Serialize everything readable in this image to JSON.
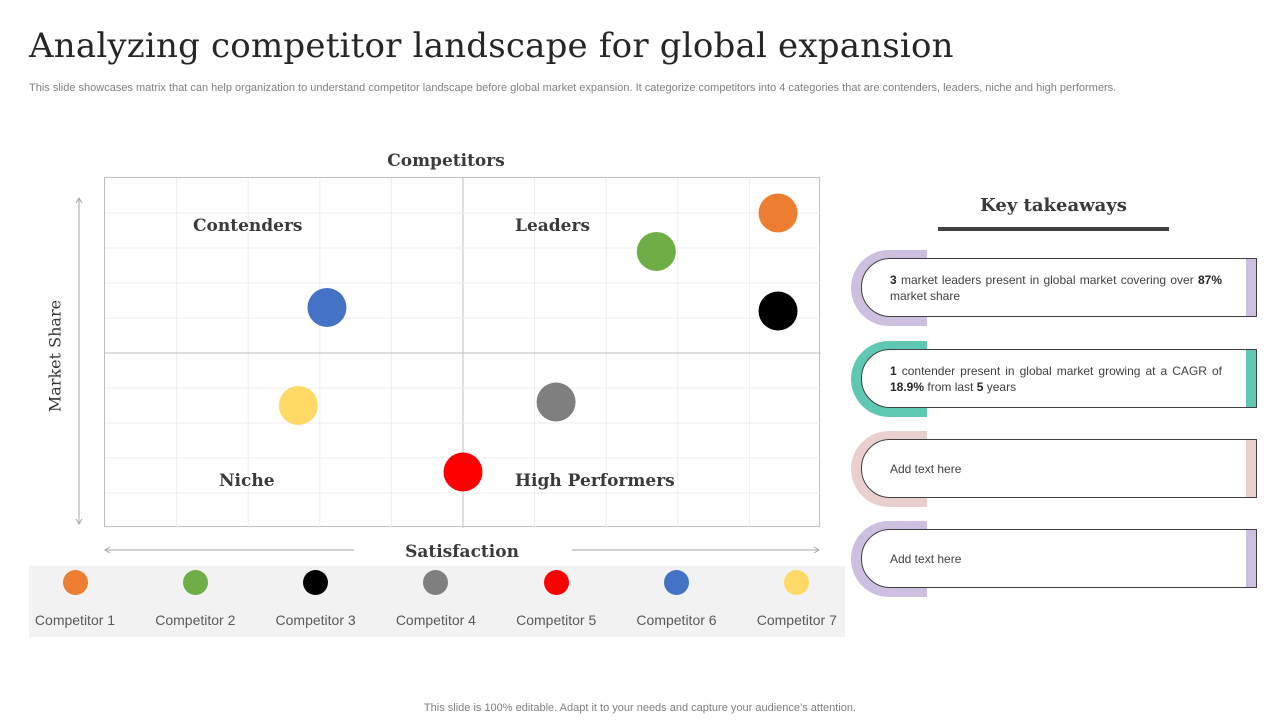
{
  "page": {
    "title": "Analyzing competitor landscape for global expansion",
    "subtitle": "This slide showcases matrix that can help organization to understand competitor landscape before global market expansion. It categorize competitors into 4 categories that are contenders, leaders, niche and high performers.",
    "footer": "This slide is 100% editable. Adapt it to your needs and capture your audience’s attention."
  },
  "matrix": {
    "top_label": "Competitors",
    "x_axis_label": "Satisfaction",
    "y_axis_label": "Market Share",
    "quadrants": {
      "top_left": "Contenders",
      "top_right": "Leaders",
      "bottom_left": "Niche",
      "bottom_right": "High Performers"
    },
    "x_range": [
      0,
      100
    ],
    "y_range": [
      0,
      100
    ],
    "points": [
      {
        "competitor": "Competitor 1",
        "color": "#ED7D31",
        "x": 94,
        "y": 90
      },
      {
        "competitor": "Competitor 2",
        "color": "#70AD47",
        "x": 77,
        "y": 79
      },
      {
        "competitor": "Competitor 3",
        "color": "#000000",
        "x": 94,
        "y": 62
      },
      {
        "competitor": "Competitor 4",
        "color": "#7F7F7F",
        "x": 63,
        "y": 36
      },
      {
        "competitor": "Competitor 5",
        "color": "#FF0000",
        "x": 50,
        "y": 16
      },
      {
        "competitor": "Competitor 6",
        "color": "#4472C4",
        "x": 31,
        "y": 63
      },
      {
        "competitor": "Competitor 7",
        "color": "#FFD966",
        "x": 27,
        "y": 35
      }
    ]
  },
  "legend": [
    {
      "name": "Competitor 1",
      "color": "#ED7D31"
    },
    {
      "name": "Competitor 2",
      "color": "#70AD47"
    },
    {
      "name": "Competitor 3",
      "color": "#000000"
    },
    {
      "name": "Competitor 4",
      "color": "#7F7F7F"
    },
    {
      "name": "Competitor 5",
      "color": "#FF0000"
    },
    {
      "name": "Competitor 6",
      "color": "#4472C4"
    },
    {
      "name": "Competitor 7",
      "color": "#FFD966"
    }
  ],
  "takeaways": {
    "title": "Key takeaways",
    "cards": [
      {
        "accent": "#CDBFE0",
        "parts": [
          {
            "t": "3",
            "b": true
          },
          {
            "t": " market leaders present in global market covering over "
          },
          {
            "t": "87%",
            "b": true
          },
          {
            "t": " market share"
          }
        ]
      },
      {
        "accent": "#5EC8B3",
        "parts": [
          {
            "t": "1",
            "b": true
          },
          {
            "t": " contender present in global market growing at a CAGR of "
          },
          {
            "t": "18.9%",
            "b": true
          },
          {
            "t": " from last "
          },
          {
            "t": "5",
            "b": true
          },
          {
            "t": " years"
          }
        ]
      },
      {
        "accent": "#EACFCF",
        "parts": [
          {
            "t": "Add text here"
          }
        ]
      },
      {
        "accent": "#CDBFE0",
        "parts": [
          {
            "t": "Add text here"
          }
        ]
      }
    ]
  }
}
